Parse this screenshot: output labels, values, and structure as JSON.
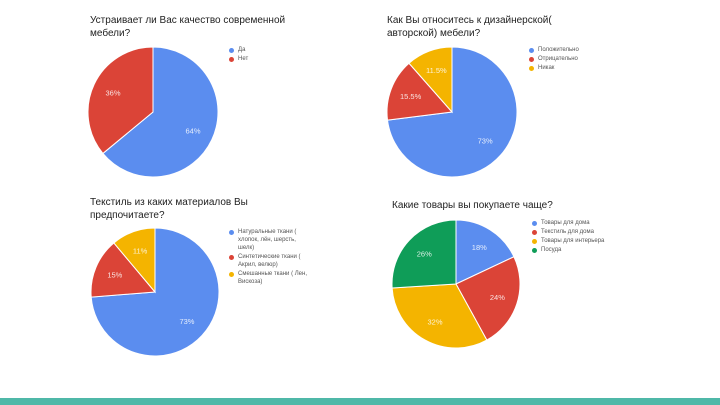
{
  "colors": {
    "blue": "#5b8def",
    "red": "#db4437",
    "yellow": "#f4b400",
    "green": "#0f9d58",
    "bar": "#4fb8a8"
  },
  "chart_data": [
    {
      "type": "pie",
      "title": "Устраивает ли Вас качество современной мебели?",
      "legend_position": "right",
      "slices": [
        {
          "label": "Да",
          "value": 64,
          "display": "64%",
          "color": "#5b8def"
        },
        {
          "label": "Нет",
          "value": 36,
          "display": "36%",
          "color": "#db4437"
        }
      ]
    },
    {
      "type": "pie",
      "title": "Как Вы относитесь к дизайнерской( авторской) мебели?",
      "legend_position": "right",
      "slices": [
        {
          "label": "Положительно",
          "value": 73,
          "display": "73%",
          "color": "#5b8def"
        },
        {
          "label": "Отрицательно",
          "value": 15.5,
          "display": "15.5%",
          "color": "#db4437"
        },
        {
          "label": "Никак",
          "value": 11.5,
          "display": "11.5%",
          "color": "#f4b400"
        }
      ]
    },
    {
      "type": "pie",
      "title": "Текстиль из каких материалов Вы предпочитаете?",
      "legend_position": "right",
      "slices": [
        {
          "label": "Натуральные ткани ( хлопок, лён, шерсть, шелк)",
          "value": 73,
          "display": "73%",
          "color": "#5b8def"
        },
        {
          "label": "Синтетические ткани ( Акрил, велюр)",
          "value": 15,
          "display": "15%",
          "color": "#db4437"
        },
        {
          "label": "Смешанные ткани ( Лен, Вискоза)",
          "value": 11,
          "display": "11%",
          "color": "#f4b400"
        }
      ]
    },
    {
      "type": "pie",
      "title": "Какие товары вы покупаете чаще?",
      "legend_position": "right",
      "slices": [
        {
          "label": "Товары для дома",
          "value": 18,
          "display": "18%",
          "color": "#5b8def"
        },
        {
          "label": "Текстиль для дома",
          "value": 24,
          "display": "24%",
          "color": "#db4437"
        },
        {
          "label": "Товары для интерьера",
          "value": 32,
          "display": "32%",
          "color": "#f4b400"
        },
        {
          "label": "Посуда",
          "value": 26,
          "display": "26%",
          "color": "#0f9d58"
        }
      ]
    }
  ]
}
